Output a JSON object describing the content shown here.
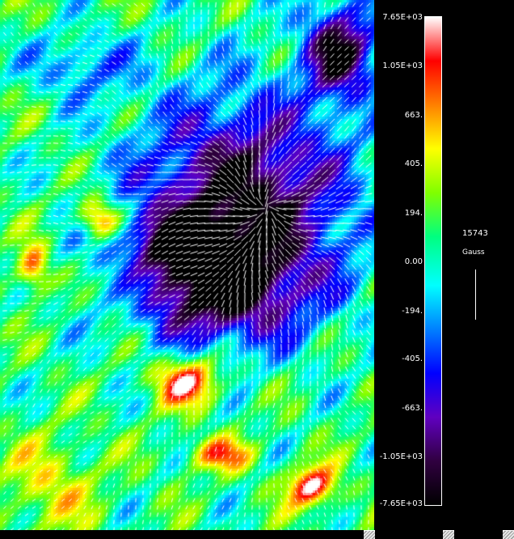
{
  "colorbar": {
    "ticks": [
      "7.65E+03",
      "1.05E+03",
      "663.",
      "405.",
      "194.",
      "0.00",
      "-194.",
      "-405.",
      "-663.",
      "-1.05E+03",
      "-7.65E+03"
    ]
  },
  "scale": {
    "value": "15743",
    "unit": "Gauss"
  },
  "colors": {
    "background": "#000000",
    "arrows": "#ffffff",
    "colormap": [
      "#ffffff",
      "#ff0000",
      "#ff8000",
      "#ffff00",
      "#80ff00",
      "#00ff80",
      "#00ffff",
      "#0080ff",
      "#0000ff",
      "#6000c0",
      "#300040",
      "#000000"
    ]
  },
  "icons": {
    "resize_handles": [
      "resize-grip-icon",
      "resize-grip-icon",
      "resize-grip-icon"
    ]
  }
}
